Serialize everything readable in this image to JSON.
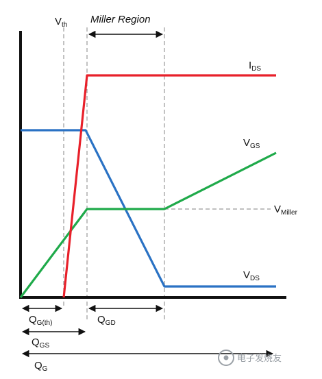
{
  "labels": {
    "vth": {
      "main": "V",
      "sub": "th"
    },
    "miller_region": "Miller Region",
    "ids": {
      "main": "I",
      "sub": "DS"
    },
    "vgs": {
      "main": "V",
      "sub": "GS"
    },
    "vmiller": {
      "main": "V",
      "sub": "Miller"
    },
    "vds": {
      "main": "V",
      "sub": "DS"
    },
    "qgth": {
      "main": "Q",
      "sub": "G(th)"
    },
    "qgd": {
      "main": "Q",
      "sub": "GD"
    },
    "qgs": {
      "main": "Q",
      "sub": "GS"
    },
    "qg": {
      "main": "Q",
      "sub": "G"
    }
  },
  "watermark": "电子发烧友",
  "colors": {
    "ids": "#e8202a",
    "vgs": "#1faa4a",
    "vds": "#2a72c4",
    "axis": "#111111",
    "guide": "#9a9a9a"
  }
}
